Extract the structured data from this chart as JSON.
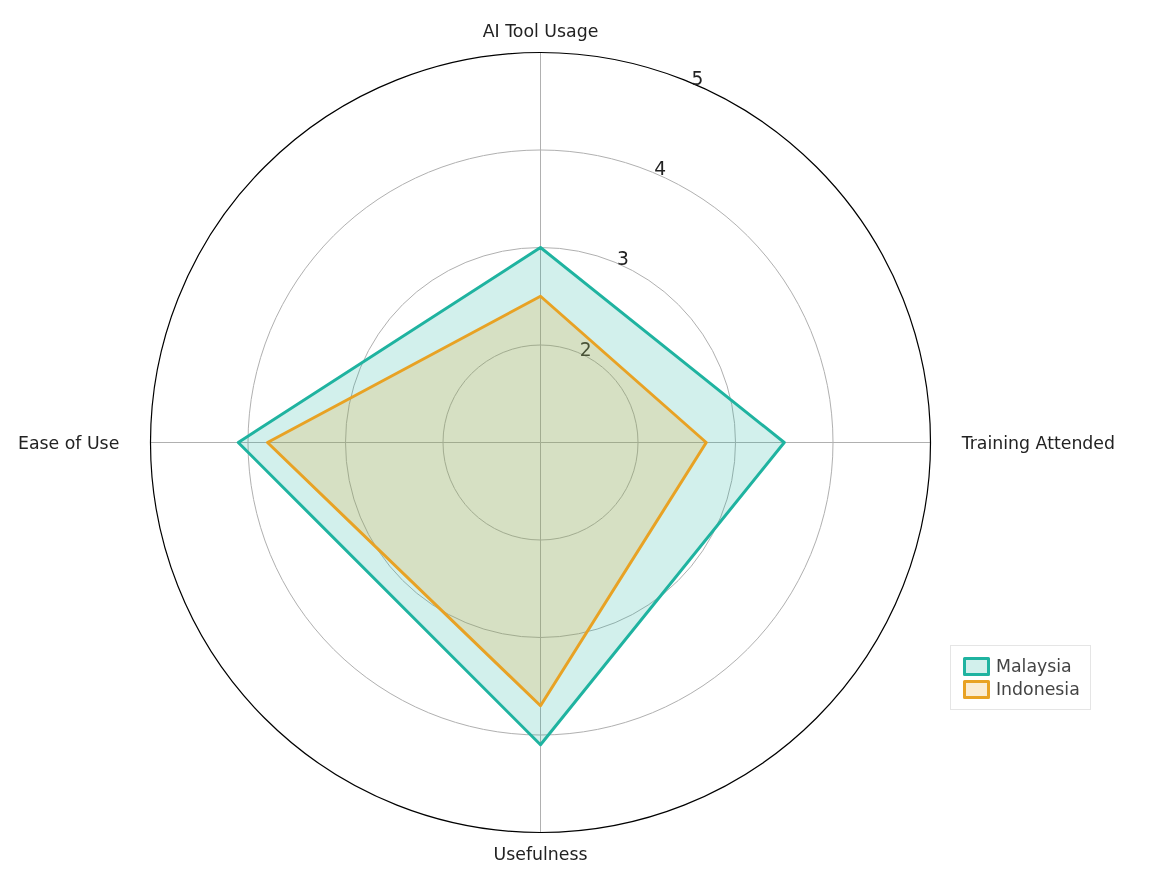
{
  "chart_data": {
    "type": "radar",
    "categories": [
      "AI Tool Usage",
      "Training Attended",
      "Usefulness",
      "Ease of Use"
    ],
    "series": [
      {
        "name": "Malaysia",
        "color": "#1fb3a0",
        "values": [
          3.0,
          3.5,
          4.1,
          4.1
        ]
      },
      {
        "name": "Indonesia",
        "color": "#e8a224",
        "values": [
          2.5,
          2.7,
          3.7,
          3.8
        ]
      }
    ],
    "ylim": [
      1,
      5
    ],
    "yticks": [
      2,
      3,
      4,
      5
    ],
    "grid": true,
    "legend": "bottom right"
  }
}
